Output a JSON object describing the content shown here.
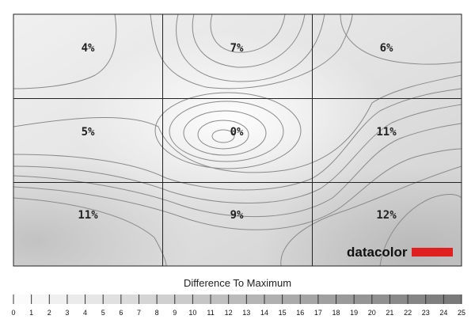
{
  "chart_data": {
    "type": "heatmap",
    "title": "",
    "grid": {
      "rows": 3,
      "cols": 3
    },
    "cells": [
      [
        "4%",
        "7%",
        "6%"
      ],
      [
        "5%",
        "0%",
        "11%"
      ],
      [
        "11%",
        "9%",
        "12%"
      ]
    ],
    "values": [
      [
        4,
        7,
        6
      ],
      [
        5,
        0,
        11
      ],
      [
        11,
        9,
        12
      ]
    ],
    "scale": {
      "title": "Difference To Maximum",
      "ticks": [
        "0",
        "1",
        "2",
        "3",
        "4",
        "5",
        "6",
        "7",
        "8",
        "9",
        "10",
        "11",
        "12",
        "13",
        "14",
        "15",
        "16",
        "17",
        "18",
        "19",
        "20",
        "21",
        "22",
        "23",
        "24",
        "25"
      ],
      "min": 0,
      "max": 25
    },
    "colors": {
      "low": "#f6f6f6",
      "high": "#7a7a7a",
      "contour": "#8a8a8a",
      "grid": "#222222",
      "brand_red": "#e02020"
    }
  },
  "brand": {
    "name": "datacolor"
  }
}
